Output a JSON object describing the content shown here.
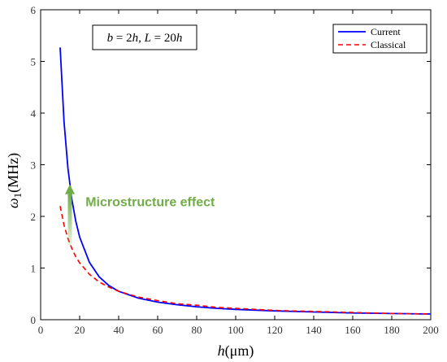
{
  "chart_data": {
    "type": "line",
    "xlabel": "h(μm)",
    "ylabel": "ω1(MHz)",
    "xlim": [
      0,
      200
    ],
    "ylim": [
      0,
      6
    ],
    "xticks": [
      0,
      20,
      40,
      60,
      80,
      100,
      120,
      140,
      160,
      180,
      200
    ],
    "yticks": [
      0,
      1,
      2,
      3,
      4,
      5,
      6
    ],
    "grid": false,
    "legend_position": "top-right",
    "series": [
      {
        "name": "Current",
        "color": "#0000FF",
        "style": "solid",
        "x": [
          10,
          12,
          14,
          16,
          18,
          20,
          25,
          30,
          35,
          40,
          50,
          60,
          70,
          80,
          90,
          100,
          120,
          140,
          160,
          180,
          200
        ],
        "y": [
          5.27,
          3.83,
          2.93,
          2.33,
          1.91,
          1.6,
          1.11,
          0.83,
          0.66,
          0.55,
          0.42,
          0.34,
          0.29,
          0.25,
          0.22,
          0.2,
          0.17,
          0.15,
          0.13,
          0.12,
          0.11
        ]
      },
      {
        "name": "Classical",
        "color": "#FF0000",
        "style": "dashed",
        "x": [
          10,
          12,
          14,
          16,
          18,
          20,
          25,
          30,
          35,
          40,
          50,
          60,
          70,
          80,
          90,
          100,
          120,
          140,
          160,
          180,
          200
        ],
        "y": [
          2.2,
          1.83,
          1.57,
          1.38,
          1.22,
          1.1,
          0.88,
          0.73,
          0.63,
          0.55,
          0.44,
          0.37,
          0.31,
          0.28,
          0.24,
          0.22,
          0.18,
          0.16,
          0.14,
          0.12,
          0.11
        ]
      }
    ],
    "annotations": [
      {
        "text": "Microstructure effect",
        "color": "#70AD47",
        "x": 23,
        "y": 2.2
      },
      {
        "text": "b = 2h, L = 20h",
        "x": 55,
        "y": 5.5
      }
    ],
    "arrow": {
      "x": 15,
      "y_from": 1.45,
      "y_to": 2.62,
      "color": "#70AD47"
    }
  }
}
